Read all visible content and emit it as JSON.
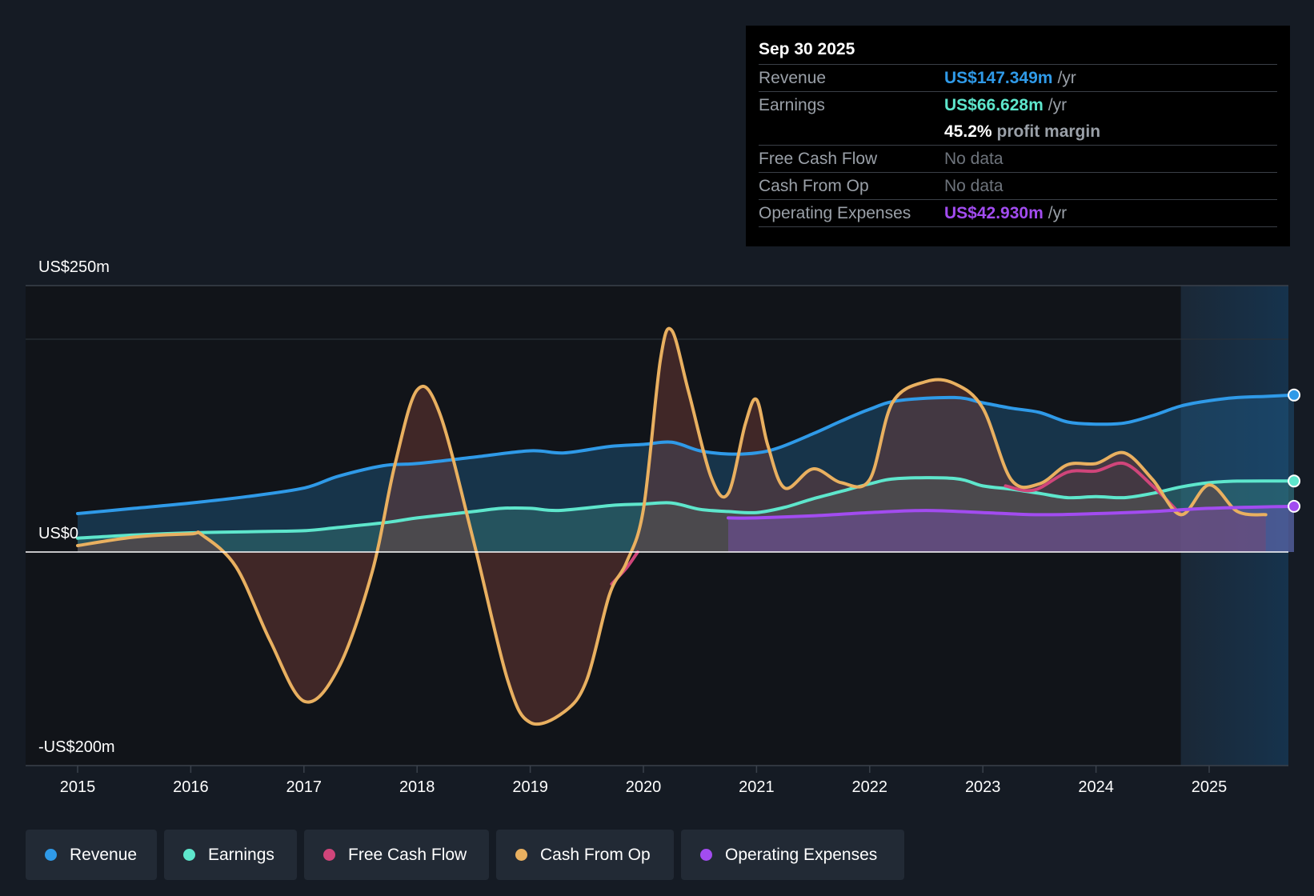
{
  "tooltip": {
    "date": "Sep 30 2025",
    "revenue_label": "Revenue",
    "revenue_value": "US$147.349m",
    "earnings_label": "Earnings",
    "earnings_value": "US$66.628m",
    "margin_value": "45.2%",
    "margin_label": "profit margin",
    "fcf_label": "Free Cash Flow",
    "fcf_value": "No data",
    "cfo_label": "Cash From Op",
    "cfo_value": "No data",
    "opex_label": "Operating Expenses",
    "opex_value": "US$42.930m",
    "unit": "/yr"
  },
  "legend": [
    {
      "label": "Revenue",
      "color": "#2f9ae8"
    },
    {
      "label": "Earnings",
      "color": "#5ee6cc"
    },
    {
      "label": "Free Cash Flow",
      "color": "#d0457a"
    },
    {
      "label": "Cash From Op",
      "color": "#e9b060"
    },
    {
      "label": "Operating Expenses",
      "color": "#a24cf0"
    }
  ],
  "chart_data": {
    "type": "line",
    "title": "",
    "xlabel": "",
    "ylabel": "",
    "ylim": [
      -200,
      250
    ],
    "y_labels": {
      "top": "US$250m",
      "zero": "US$0",
      "bottom": "-US$200m"
    },
    "x_ticks": [
      "2015",
      "2016",
      "2017",
      "2018",
      "2019",
      "2020",
      "2021",
      "2022",
      "2023",
      "2024",
      "2025"
    ],
    "x_range": [
      2014.55,
      2025.75
    ],
    "forecast_start": 2024.75,
    "series": [
      {
        "name": "Revenue",
        "color": "#2f9ae8",
        "fill": true,
        "points": [
          [
            2015.0,
            36
          ],
          [
            2015.5,
            41
          ],
          [
            2016.0,
            46
          ],
          [
            2016.5,
            52
          ],
          [
            2017.0,
            60
          ],
          [
            2017.3,
            71
          ],
          [
            2017.7,
            81
          ],
          [
            2018.0,
            83
          ],
          [
            2018.5,
            89
          ],
          [
            2019.0,
            95
          ],
          [
            2019.3,
            93
          ],
          [
            2019.7,
            99
          ],
          [
            2020.0,
            101
          ],
          [
            2020.25,
            103
          ],
          [
            2020.5,
            95
          ],
          [
            2020.75,
            92
          ],
          [
            2021.0,
            93
          ],
          [
            2021.2,
            98
          ],
          [
            2021.5,
            111
          ],
          [
            2021.75,
            123
          ],
          [
            2022.0,
            134
          ],
          [
            2022.25,
            142
          ],
          [
            2022.75,
            145
          ],
          [
            2023.0,
            140
          ],
          [
            2023.25,
            135
          ],
          [
            2023.5,
            131
          ],
          [
            2023.75,
            122
          ],
          [
            2024.0,
            120
          ],
          [
            2024.25,
            121
          ],
          [
            2024.5,
            128
          ],
          [
            2024.75,
            137
          ],
          [
            2025.0,
            142
          ],
          [
            2025.25,
            145
          ],
          [
            2025.5,
            146
          ],
          [
            2025.75,
            147.3
          ]
        ]
      },
      {
        "name": "Earnings",
        "color": "#5ee6cc",
        "fill": true,
        "points": [
          [
            2015.0,
            13
          ],
          [
            2015.5,
            16
          ],
          [
            2016.0,
            18
          ],
          [
            2016.5,
            19
          ],
          [
            2017.0,
            20
          ],
          [
            2017.3,
            23
          ],
          [
            2017.75,
            28
          ],
          [
            2018.0,
            32
          ],
          [
            2018.5,
            38
          ],
          [
            2018.75,
            41
          ],
          [
            2019.0,
            41
          ],
          [
            2019.25,
            39
          ],
          [
            2019.75,
            44
          ],
          [
            2020.0,
            45
          ],
          [
            2020.25,
            46
          ],
          [
            2020.5,
            40
          ],
          [
            2020.75,
            38
          ],
          [
            2021.0,
            37
          ],
          [
            2021.25,
            42
          ],
          [
            2021.5,
            50
          ],
          [
            2021.75,
            57
          ],
          [
            2022.0,
            64
          ],
          [
            2022.25,
            69
          ],
          [
            2022.75,
            69
          ],
          [
            2023.0,
            62
          ],
          [
            2023.25,
            59
          ],
          [
            2023.5,
            55
          ],
          [
            2023.75,
            51
          ],
          [
            2024.0,
            52
          ],
          [
            2024.25,
            51
          ],
          [
            2024.5,
            55
          ],
          [
            2024.75,
            61
          ],
          [
            2025.0,
            65
          ],
          [
            2025.25,
            66.5
          ],
          [
            2025.75,
            66.6
          ]
        ]
      },
      {
        "name": "Free Cash Flow",
        "color": "#d0457a",
        "fill": false,
        "points": [
          [
            2019.72,
            -30
          ],
          [
            2019.85,
            -15
          ],
          [
            2019.95,
            0
          ]
        ]
      },
      {
        "name": "Free Cash Flow",
        "color": "#d0457a",
        "fill": false,
        "points": [
          [
            2023.2,
            62
          ],
          [
            2023.45,
            58
          ],
          [
            2023.75,
            75
          ],
          [
            2024.0,
            76
          ],
          [
            2024.25,
            83
          ],
          [
            2024.5,
            62
          ],
          [
            2024.75,
            35
          ]
        ]
      },
      {
        "name": "Cash From Op",
        "color": "#e9b060",
        "fill": true,
        "points": [
          [
            2015.0,
            6
          ],
          [
            2015.5,
            14
          ],
          [
            2016.0,
            17
          ],
          [
            2016.1,
            16
          ],
          [
            2016.4,
            -14
          ],
          [
            2016.7,
            -83
          ],
          [
            2017.0,
            -140
          ],
          [
            2017.3,
            -110
          ],
          [
            2017.6,
            -20
          ],
          [
            2017.8,
            80
          ],
          [
            2018.0,
            152
          ],
          [
            2018.2,
            130
          ],
          [
            2018.5,
            10
          ],
          [
            2018.8,
            -120
          ],
          [
            2019.0,
            -160
          ],
          [
            2019.3,
            -150
          ],
          [
            2019.5,
            -120
          ],
          [
            2019.7,
            -40
          ],
          [
            2019.85,
            -10
          ],
          [
            2020.0,
            40
          ],
          [
            2020.15,
            180
          ],
          [
            2020.25,
            208
          ],
          [
            2020.4,
            150
          ],
          [
            2020.6,
            70
          ],
          [
            2020.75,
            55
          ],
          [
            2020.9,
            120
          ],
          [
            2021.0,
            143
          ],
          [
            2021.1,
            100
          ],
          [
            2021.25,
            60
          ],
          [
            2021.5,
            78
          ],
          [
            2021.75,
            65
          ],
          [
            2022.0,
            68
          ],
          [
            2022.2,
            140
          ],
          [
            2022.5,
            160
          ],
          [
            2022.75,
            158
          ],
          [
            2023.0,
            135
          ],
          [
            2023.25,
            68
          ],
          [
            2023.5,
            64
          ],
          [
            2023.75,
            82
          ],
          [
            2024.0,
            83
          ],
          [
            2024.25,
            93
          ],
          [
            2024.5,
            68
          ],
          [
            2024.75,
            35
          ],
          [
            2025.0,
            63
          ],
          [
            2025.25,
            38
          ],
          [
            2025.5,
            35
          ]
        ]
      },
      {
        "name": "Operating Expenses",
        "color": "#a24cf0",
        "fill": true,
        "points": [
          [
            2020.75,
            32
          ],
          [
            2021.0,
            32
          ],
          [
            2021.5,
            34
          ],
          [
            2022.0,
            37
          ],
          [
            2022.5,
            39
          ],
          [
            2023.0,
            37
          ],
          [
            2023.5,
            35
          ],
          [
            2024.0,
            36
          ],
          [
            2024.5,
            38
          ],
          [
            2025.0,
            41
          ],
          [
            2025.75,
            42.9
          ]
        ]
      }
    ]
  }
}
